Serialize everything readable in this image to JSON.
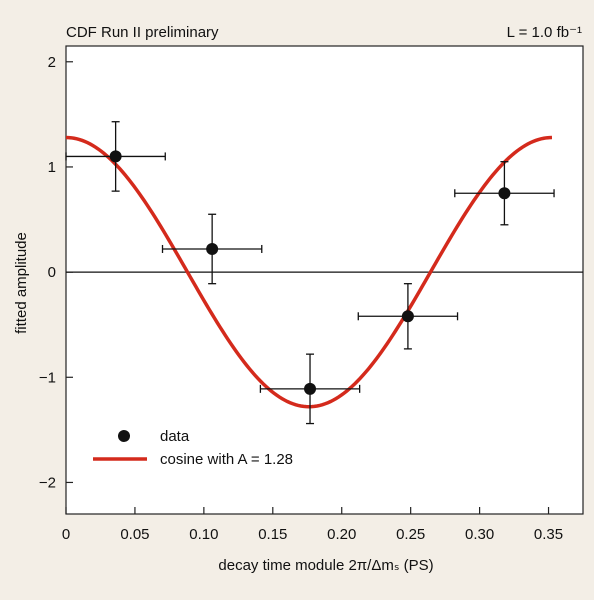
{
  "chart_data": {
    "type": "scatter",
    "title_left": "CDF Run II preliminary",
    "title_right": "L = 1.0 fb⁻¹",
    "xlabel": "decay time module 2π/Δmₛ (PS)",
    "ylabel": "fitted amplitude",
    "xlim": [
      0,
      0.375
    ],
    "ylim": [
      -2.3,
      2.15
    ],
    "x_ticks": [
      0,
      0.05,
      0.1,
      0.15,
      0.2,
      0.25,
      0.3,
      0.35
    ],
    "x_tick_labels": [
      "0",
      "0.05",
      "0.10",
      "0.15",
      "0.20",
      "0.25",
      "0.30",
      "0.35"
    ],
    "y_ticks": [
      -2,
      -1,
      0,
      1,
      2
    ],
    "y_tick_labels": [
      "−2",
      "−1",
      "0",
      "1",
      "2"
    ],
    "zero_line": true,
    "grid": false,
    "legend_position": "bottom-left",
    "series": [
      {
        "name": "data",
        "kind": "points-with-errors",
        "color": "#111111",
        "points": [
          {
            "x": 0.036,
            "y": 1.1,
            "xerr": 0.036,
            "yerr": 0.33
          },
          {
            "x": 0.106,
            "y": 0.22,
            "xerr": 0.036,
            "yerr": 0.33
          },
          {
            "x": 0.177,
            "y": -1.11,
            "xerr": 0.036,
            "yerr": 0.33
          },
          {
            "x": 0.248,
            "y": -0.42,
            "xerr": 0.036,
            "yerr": 0.31
          },
          {
            "x": 0.318,
            "y": 0.75,
            "xerr": 0.036,
            "yerr": 0.3
          }
        ]
      },
      {
        "name": "cosine with A = 1.28",
        "kind": "curve",
        "color": "#d42a1c",
        "amplitude": 1.28,
        "period": 0.3525,
        "x_range": [
          0,
          0.3525
        ]
      }
    ]
  }
}
